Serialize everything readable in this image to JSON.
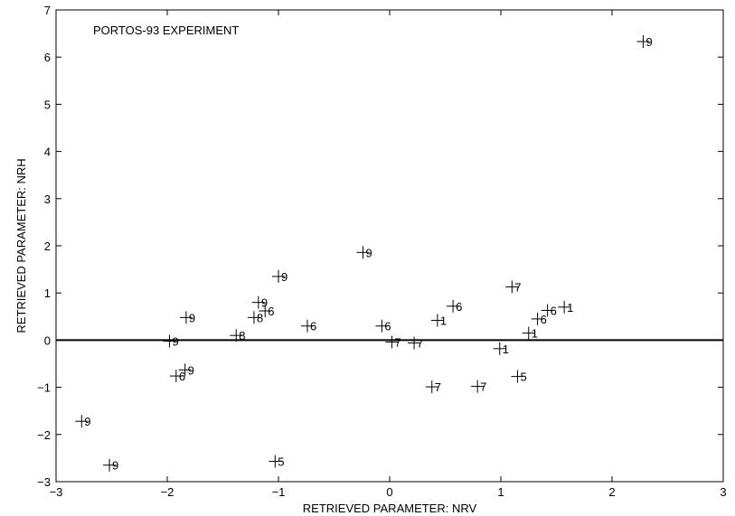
{
  "chart_data": {
    "type": "scatter",
    "title": "PORTOS-93 EXPERIMENT",
    "xlabel": "RETRIEVED PARAMETER: NRV",
    "ylabel": "RETRIEVED PARAMETER: NRH",
    "xlim": [
      -3,
      3
    ],
    "ylim": [
      -3,
      7
    ],
    "xticks": [
      -3,
      -2,
      -1,
      0,
      1,
      2,
      3
    ],
    "yticks": [
      -3,
      -2,
      -1,
      0,
      1,
      2,
      3,
      4,
      5,
      6,
      7
    ],
    "xtick_labels": [
      "−3",
      "−2",
      "−1",
      "0",
      "1",
      "2",
      "3"
    ],
    "ytick_labels": [
      "−3",
      "−2",
      "−1",
      "0",
      "1",
      "2",
      "3",
      "4",
      "5",
      "6",
      "7"
    ],
    "grid": false,
    "marker": "+",
    "reference_line_y": 0,
    "points": [
      {
        "x": 2.28,
        "y": 6.33,
        "label": "9"
      },
      {
        "x": -0.24,
        "y": 1.86,
        "label": "9"
      },
      {
        "x": -1.0,
        "y": 1.35,
        "label": "9"
      },
      {
        "x": -1.18,
        "y": 0.8,
        "label": "9"
      },
      {
        "x": -1.12,
        "y": 0.62,
        "label": "6"
      },
      {
        "x": -1.22,
        "y": 0.48,
        "label": "8"
      },
      {
        "x": -1.83,
        "y": 0.48,
        "label": "9"
      },
      {
        "x": -0.74,
        "y": 0.3,
        "label": "6"
      },
      {
        "x": -1.38,
        "y": 0.1,
        "label": "8"
      },
      {
        "x": -1.98,
        "y": -0.02,
        "label": "9"
      },
      {
        "x": -0.07,
        "y": 0.3,
        "label": "6"
      },
      {
        "x": 0.02,
        "y": -0.04,
        "label": "7"
      },
      {
        "x": 0.22,
        "y": -0.06,
        "label": "7"
      },
      {
        "x": 0.43,
        "y": 0.42,
        "label": "1"
      },
      {
        "x": 0.57,
        "y": 0.72,
        "label": "6"
      },
      {
        "x": 1.1,
        "y": 1.13,
        "label": "7"
      },
      {
        "x": 1.33,
        "y": 0.45,
        "label": "6"
      },
      {
        "x": 1.42,
        "y": 0.63,
        "label": "6"
      },
      {
        "x": 1.57,
        "y": 0.7,
        "label": "1"
      },
      {
        "x": 1.25,
        "y": 0.15,
        "label": "1"
      },
      {
        "x": 0.99,
        "y": -0.18,
        "label": "1"
      },
      {
        "x": 1.15,
        "y": -0.77,
        "label": "5"
      },
      {
        "x": 0.38,
        "y": -0.99,
        "label": "7"
      },
      {
        "x": 0.79,
        "y": -0.98,
        "label": "7"
      },
      {
        "x": -1.84,
        "y": -0.63,
        "label": "9"
      },
      {
        "x": -1.92,
        "y": -0.76,
        "label": "6"
      },
      {
        "x": -2.77,
        "y": -1.72,
        "label": "9"
      },
      {
        "x": -2.52,
        "y": -2.65,
        "label": "9"
      },
      {
        "x": -1.03,
        "y": -2.57,
        "label": "5"
      }
    ]
  }
}
